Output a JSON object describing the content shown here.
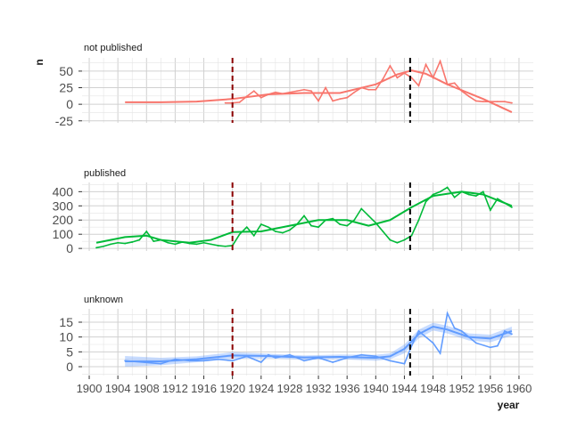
{
  "chart_data": {
    "type": "line",
    "xlabel": "year",
    "ylabel": "n",
    "xlim": [
      1899,
      1962
    ],
    "x_ticks": [
      1900,
      1904,
      1908,
      1912,
      1916,
      1920,
      1924,
      1928,
      1932,
      1936,
      1940,
      1944,
      1948,
      1952,
      1956,
      1960
    ],
    "grid": true,
    "vlines": [
      {
        "x": 1920,
        "color": "#8b0000",
        "style": "dashed"
      },
      {
        "x": 1944.8,
        "color": "#000000",
        "style": "dashed"
      }
    ],
    "facets": [
      {
        "title": "not published",
        "color": "#f8766d",
        "ylim": [
          -28,
          70
        ],
        "y_ticks": [
          -25,
          0,
          25,
          50
        ],
        "smooth_band": false,
        "x": [
          1919,
          1920,
          1921,
          1922,
          1923,
          1924,
          1925,
          1926,
          1927,
          1928,
          1929,
          1930,
          1931,
          1932,
          1933,
          1934,
          1935,
          1936,
          1937,
          1938,
          1939,
          1940,
          1941,
          1942,
          1943,
          1944,
          1945,
          1946,
          1947,
          1948,
          1949,
          1950,
          1951,
          1952,
          1953,
          1954,
          1955,
          1956,
          1957,
          1958,
          1959
        ],
        "values": [
          2,
          2,
          3,
          12,
          20,
          10,
          15,
          18,
          16,
          18,
          20,
          22,
          20,
          5,
          25,
          5,
          8,
          10,
          18,
          25,
          22,
          22,
          38,
          58,
          40,
          47,
          40,
          28,
          60,
          40,
          65,
          30,
          32,
          20,
          12,
          5,
          4,
          4,
          4,
          4,
          2
        ],
        "smooth": [
          [
            1905,
            3
          ],
          [
            1910,
            3
          ],
          [
            1915,
            4
          ],
          [
            1920,
            8
          ],
          [
            1925,
            15
          ],
          [
            1930,
            17
          ],
          [
            1935,
            17
          ],
          [
            1940,
            30
          ],
          [
            1943,
            45
          ],
          [
            1945,
            51
          ],
          [
            1947,
            46
          ],
          [
            1950,
            30
          ],
          [
            1955,
            8
          ],
          [
            1959,
            -12
          ]
        ]
      },
      {
        "title": "published",
        "color": "#00ba38",
        "ylim": [
          -18,
          465
        ],
        "y_ticks": [
          0,
          100,
          200,
          300,
          400
        ],
        "smooth_band": false,
        "x": [
          1901,
          1902,
          1903,
          1904,
          1905,
          1906,
          1907,
          1908,
          1909,
          1910,
          1911,
          1912,
          1913,
          1914,
          1915,
          1916,
          1917,
          1918,
          1919,
          1920,
          1921,
          1922,
          1923,
          1924,
          1925,
          1926,
          1927,
          1928,
          1929,
          1930,
          1931,
          1932,
          1933,
          1934,
          1935,
          1936,
          1937,
          1938,
          1939,
          1940,
          1941,
          1942,
          1943,
          1944,
          1945,
          1946,
          1947,
          1948,
          1949,
          1950,
          1951,
          1952,
          1953,
          1954,
          1955,
          1956,
          1957,
          1958,
          1959
        ],
        "values": [
          5,
          15,
          30,
          40,
          35,
          45,
          60,
          120,
          50,
          60,
          40,
          30,
          45,
          35,
          30,
          40,
          30,
          20,
          15,
          20,
          100,
          150,
          90,
          170,
          150,
          120,
          110,
          130,
          170,
          230,
          160,
          150,
          200,
          210,
          170,
          160,
          200,
          280,
          230,
          180,
          120,
          60,
          40,
          60,
          90,
          200,
          330,
          380,
          400,
          430,
          360,
          400,
          380,
          370,
          400,
          270,
          350,
          320,
          290
        ],
        "smooth": [
          [
            1901,
            40
          ],
          [
            1905,
            80
          ],
          [
            1908,
            90
          ],
          [
            1910,
            60
          ],
          [
            1914,
            40
          ],
          [
            1917,
            60
          ],
          [
            1920,
            115
          ],
          [
            1924,
            120
          ],
          [
            1928,
            160
          ],
          [
            1932,
            200
          ],
          [
            1936,
            200
          ],
          [
            1939,
            160
          ],
          [
            1942,
            200
          ],
          [
            1945,
            290
          ],
          [
            1948,
            370
          ],
          [
            1952,
            400
          ],
          [
            1955,
            380
          ],
          [
            1959,
            300
          ]
        ]
      },
      {
        "title": "unknown",
        "color": "#619cff",
        "ylim": [
          -3,
          19.5
        ],
        "y_ticks": [
          0,
          5,
          10,
          15
        ],
        "smooth_band": true,
        "x": [
          1905,
          1910,
          1912,
          1914,
          1916,
          1918,
          1920,
          1922,
          1924,
          1925,
          1926,
          1928,
          1930,
          1932,
          1934,
          1936,
          1938,
          1940,
          1942,
          1944,
          1945,
          1946,
          1948,
          1949,
          1950,
          1951,
          1952,
          1954,
          1956,
          1957,
          1958,
          1959
        ],
        "values": [
          2,
          1,
          2.5,
          2,
          2,
          2.5,
          2,
          3.5,
          1.5,
          4,
          3,
          4,
          2,
          3,
          1.5,
          3,
          4,
          3.5,
          2,
          1,
          7,
          12,
          8,
          4.5,
          18,
          13,
          12,
          8,
          6.5,
          7,
          12,
          11
        ],
        "smooth": [
          [
            1905,
            1.8
          ],
          [
            1910,
            1.8
          ],
          [
            1915,
            2.5
          ],
          [
            1920,
            3.8
          ],
          [
            1925,
            3.6
          ],
          [
            1930,
            3.1
          ],
          [
            1935,
            3.3
          ],
          [
            1940,
            3
          ],
          [
            1942,
            3.5
          ],
          [
            1944,
            6
          ],
          [
            1946,
            11
          ],
          [
            1948,
            13.5
          ],
          [
            1950,
            12.5
          ],
          [
            1953,
            10
          ],
          [
            1956,
            9.5
          ],
          [
            1959,
            12
          ]
        ],
        "band_lower": [
          [
            1905,
            0
          ],
          [
            1910,
            0.5
          ],
          [
            1915,
            1.5
          ],
          [
            1920,
            2.7
          ],
          [
            1925,
            2.8
          ],
          [
            1930,
            2.4
          ],
          [
            1935,
            2.5
          ],
          [
            1940,
            2
          ],
          [
            1942,
            2.5
          ],
          [
            1944,
            4.5
          ],
          [
            1946,
            9.5
          ],
          [
            1948,
            12.2
          ],
          [
            1950,
            11.2
          ],
          [
            1953,
            8.8
          ],
          [
            1956,
            8.2
          ],
          [
            1959,
            10.5
          ]
        ],
        "band_upper": [
          [
            1905,
            3.6
          ],
          [
            1910,
            3
          ],
          [
            1915,
            3.5
          ],
          [
            1920,
            4.9
          ],
          [
            1925,
            4.4
          ],
          [
            1930,
            3.8
          ],
          [
            1935,
            4.1
          ],
          [
            1940,
            4
          ],
          [
            1942,
            4.5
          ],
          [
            1944,
            7.5
          ],
          [
            1946,
            12.5
          ],
          [
            1948,
            14.8
          ],
          [
            1950,
            13.8
          ],
          [
            1953,
            11.2
          ],
          [
            1956,
            10.8
          ],
          [
            1959,
            13.5
          ]
        ]
      }
    ]
  }
}
